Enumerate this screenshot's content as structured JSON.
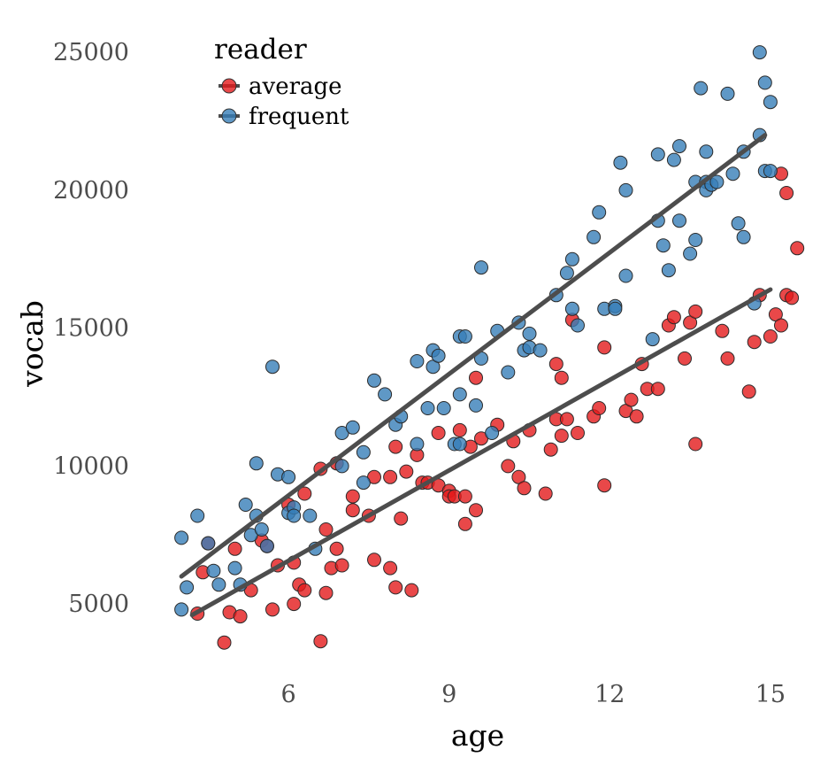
{
  "chart_data": {
    "type": "scatter",
    "title": "",
    "xlabel": "age",
    "ylabel": "vocab",
    "xlim": [
      3.9,
      15.2
    ],
    "ylim": [
      2500,
      26000
    ],
    "x_ticks": [
      6,
      9,
      12,
      15
    ],
    "y_ticks": [
      5000,
      10000,
      15000,
      20000,
      25000
    ],
    "grid": false,
    "legend": {
      "title": "reader",
      "position": "top-left"
    },
    "series": [
      {
        "name": "average",
        "color": "#E41A1C",
        "trend": {
          "x": [
            4.2,
            15.0
          ],
          "y": [
            4600,
            16400
          ]
        },
        "points": [
          [
            4.3,
            4650
          ],
          [
            4.4,
            6150
          ],
          [
            4.5,
            7200
          ],
          [
            4.8,
            3600
          ],
          [
            4.9,
            4700
          ],
          [
            5.0,
            7000
          ],
          [
            5.1,
            4550
          ],
          [
            5.3,
            5500
          ],
          [
            5.5,
            7300
          ],
          [
            5.6,
            7100
          ],
          [
            5.7,
            4800
          ],
          [
            5.8,
            6400
          ],
          [
            6.0,
            8600
          ],
          [
            6.1,
            6500
          ],
          [
            6.1,
            5000
          ],
          [
            6.2,
            5700
          ],
          [
            6.3,
            5500
          ],
          [
            6.3,
            9000
          ],
          [
            6.6,
            9900
          ],
          [
            6.6,
            3650
          ],
          [
            6.7,
            7700
          ],
          [
            6.7,
            5400
          ],
          [
            6.8,
            6300
          ],
          [
            6.9,
            7000
          ],
          [
            6.9,
            10100
          ],
          [
            7.0,
            6400
          ],
          [
            7.2,
            8400
          ],
          [
            7.2,
            8900
          ],
          [
            7.5,
            8200
          ],
          [
            7.6,
            9600
          ],
          [
            7.6,
            6600
          ],
          [
            7.9,
            9600
          ],
          [
            7.9,
            6300
          ],
          [
            8.0,
            10700
          ],
          [
            8.0,
            5600
          ],
          [
            8.1,
            8100
          ],
          [
            8.2,
            9800
          ],
          [
            8.3,
            5500
          ],
          [
            8.4,
            10400
          ],
          [
            8.5,
            9400
          ],
          [
            8.6,
            9400
          ],
          [
            8.8,
            9300
          ],
          [
            8.8,
            11200
          ],
          [
            9.0,
            9100
          ],
          [
            9.0,
            8900
          ],
          [
            9.1,
            8900
          ],
          [
            9.2,
            11300
          ],
          [
            9.3,
            8900
          ],
          [
            9.3,
            7900
          ],
          [
            9.4,
            10700
          ],
          [
            9.5,
            13200
          ],
          [
            9.5,
            8400
          ],
          [
            9.6,
            11000
          ],
          [
            9.9,
            11500
          ],
          [
            10.1,
            10000
          ],
          [
            10.2,
            10900
          ],
          [
            10.3,
            9600
          ],
          [
            10.4,
            9200
          ],
          [
            10.5,
            11300
          ],
          [
            10.8,
            9000
          ],
          [
            10.9,
            10600
          ],
          [
            11.0,
            11700
          ],
          [
            11.0,
            13700
          ],
          [
            11.1,
            13200
          ],
          [
            11.1,
            11100
          ],
          [
            11.2,
            11700
          ],
          [
            11.3,
            15300
          ],
          [
            11.4,
            11200
          ],
          [
            11.7,
            11800
          ],
          [
            11.8,
            12100
          ],
          [
            11.9,
            14300
          ],
          [
            11.9,
            9300
          ],
          [
            12.3,
            12000
          ],
          [
            12.4,
            12400
          ],
          [
            12.5,
            11800
          ],
          [
            12.6,
            13700
          ],
          [
            12.7,
            12800
          ],
          [
            12.9,
            12800
          ],
          [
            13.1,
            15100
          ],
          [
            13.2,
            15400
          ],
          [
            13.4,
            13900
          ],
          [
            13.5,
            15200
          ],
          [
            13.6,
            15600
          ],
          [
            13.6,
            10800
          ],
          [
            14.1,
            14900
          ],
          [
            14.2,
            13900
          ],
          [
            14.6,
            12700
          ],
          [
            14.7,
            14500
          ],
          [
            14.8,
            16200
          ],
          [
            15.0,
            14700
          ],
          [
            15.1,
            15500
          ],
          [
            15.2,
            15100
          ],
          [
            15.2,
            20600
          ],
          [
            15.3,
            16200
          ],
          [
            15.3,
            19900
          ],
          [
            15.4,
            16100
          ],
          [
            15.5,
            17900
          ]
        ]
      },
      {
        "name": "frequent",
        "color": "#377EB8",
        "trend": {
          "x": [
            4.0,
            14.9
          ],
          "y": [
            6000,
            22000
          ]
        },
        "points": [
          [
            4.0,
            7400
          ],
          [
            4.0,
            4800
          ],
          [
            4.1,
            5600
          ],
          [
            4.3,
            8200
          ],
          [
            4.5,
            7200
          ],
          [
            4.6,
            6200
          ],
          [
            4.7,
            5700
          ],
          [
            5.0,
            6300
          ],
          [
            5.1,
            5700
          ],
          [
            5.2,
            8600
          ],
          [
            5.3,
            7500
          ],
          [
            5.4,
            8200
          ],
          [
            5.4,
            10100
          ],
          [
            5.5,
            7700
          ],
          [
            5.6,
            7100
          ],
          [
            5.7,
            13600
          ],
          [
            5.8,
            9700
          ],
          [
            6.0,
            9600
          ],
          [
            6.0,
            8300
          ],
          [
            6.1,
            8500
          ],
          [
            6.1,
            8200
          ],
          [
            6.4,
            8200
          ],
          [
            6.5,
            7000
          ],
          [
            7.0,
            10000
          ],
          [
            7.0,
            11200
          ],
          [
            7.2,
            11400
          ],
          [
            7.4,
            9400
          ],
          [
            7.4,
            10500
          ],
          [
            7.6,
            13100
          ],
          [
            7.8,
            12600
          ],
          [
            8.0,
            11500
          ],
          [
            8.1,
            11800
          ],
          [
            8.4,
            10800
          ],
          [
            8.4,
            13800
          ],
          [
            8.6,
            12100
          ],
          [
            8.7,
            14200
          ],
          [
            8.7,
            13600
          ],
          [
            8.8,
            14000
          ],
          [
            8.9,
            12100
          ],
          [
            9.1,
            10800
          ],
          [
            9.2,
            14700
          ],
          [
            9.2,
            12600
          ],
          [
            9.2,
            10800
          ],
          [
            9.3,
            14700
          ],
          [
            9.5,
            12200
          ],
          [
            9.6,
            17200
          ],
          [
            9.6,
            13900
          ],
          [
            9.8,
            11200
          ],
          [
            9.9,
            14900
          ],
          [
            10.1,
            13400
          ],
          [
            10.3,
            15200
          ],
          [
            10.4,
            14200
          ],
          [
            10.5,
            14800
          ],
          [
            10.5,
            14300
          ],
          [
            10.7,
            14200
          ],
          [
            11.0,
            16200
          ],
          [
            11.2,
            17000
          ],
          [
            11.3,
            17500
          ],
          [
            11.3,
            15700
          ],
          [
            11.4,
            15100
          ],
          [
            11.7,
            18300
          ],
          [
            11.8,
            19200
          ],
          [
            11.9,
            15700
          ],
          [
            12.1,
            15800
          ],
          [
            12.1,
            15700
          ],
          [
            12.2,
            21000
          ],
          [
            12.3,
            16900
          ],
          [
            12.3,
            20000
          ],
          [
            12.8,
            14600
          ],
          [
            12.9,
            18900
          ],
          [
            12.9,
            21300
          ],
          [
            13.0,
            18000
          ],
          [
            13.1,
            17100
          ],
          [
            13.2,
            21100
          ],
          [
            13.3,
            18900
          ],
          [
            13.3,
            21600
          ],
          [
            13.5,
            17700
          ],
          [
            13.6,
            20300
          ],
          [
            13.6,
            18200
          ],
          [
            13.7,
            23700
          ],
          [
            13.8,
            21400
          ],
          [
            13.8,
            20300
          ],
          [
            13.8,
            20000
          ],
          [
            13.9,
            20200
          ],
          [
            14.0,
            20300
          ],
          [
            14.2,
            23500
          ],
          [
            14.3,
            20600
          ],
          [
            14.4,
            18800
          ],
          [
            14.5,
            21400
          ],
          [
            14.5,
            18300
          ],
          [
            14.7,
            15900
          ],
          [
            14.8,
            25000
          ],
          [
            14.8,
            22000
          ],
          [
            14.9,
            23900
          ],
          [
            14.9,
            20700
          ],
          [
            15.0,
            20700
          ],
          [
            15.0,
            23200
          ]
        ]
      }
    ]
  }
}
